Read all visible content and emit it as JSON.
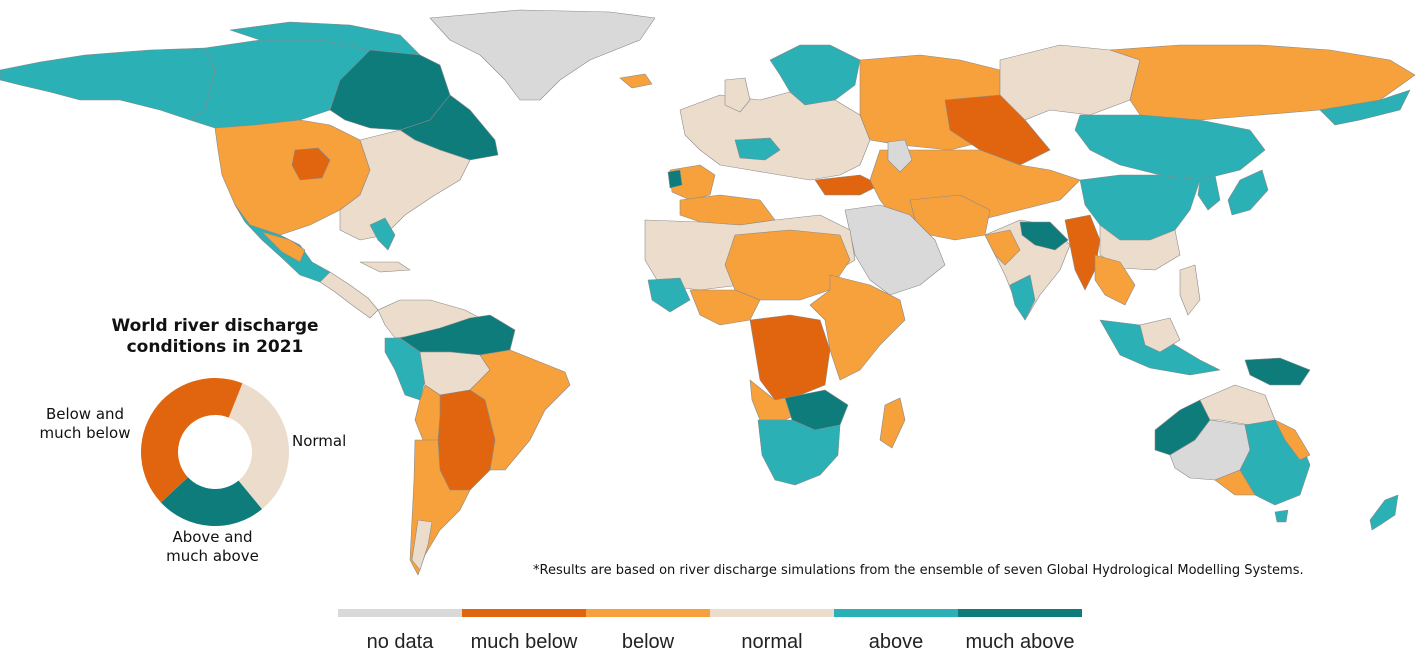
{
  "title_lines": [
    "World river discharge",
    "conditions in 2021"
  ],
  "donut": {
    "segments": [
      {
        "key": "normal",
        "label_lines": [
          "Normal"
        ],
        "fraction": 0.33,
        "color": "#ebdccb"
      },
      {
        "key": "above",
        "label_lines": [
          "Above and",
          "much above"
        ],
        "fraction": 0.24,
        "color": "#0f7c7c"
      },
      {
        "key": "below",
        "label_lines": [
          "Below and",
          "much below"
        ],
        "fraction": 0.43,
        "color": "#e0650e"
      }
    ]
  },
  "footnote": "*Results are based on river discharge simulations from the ensemble of seven Global Hydrological Modelling Systems.",
  "legend": [
    {
      "label": "no data",
      "color": "#d9d9d9"
    },
    {
      "label": "much below",
      "color": "#e0650e"
    },
    {
      "label": "below",
      "color": "#f6a13c"
    },
    {
      "label": "normal",
      "color": "#ebdccb"
    },
    {
      "label": "above",
      "color": "#2ab0b5"
    },
    {
      "label": "much above",
      "color": "#0f7c7c"
    }
  ],
  "map": {
    "regions": [
      {
        "name": "alaska-yukon",
        "class": "above"
      },
      {
        "name": "north-canada",
        "class": "above"
      },
      {
        "name": "hudson-region",
        "class": "much above"
      },
      {
        "name": "eastern-canada",
        "class": "much above"
      },
      {
        "name": "western-usa",
        "class": "below"
      },
      {
        "name": "northern-plains",
        "class": "much below"
      },
      {
        "name": "eastern-usa",
        "class": "normal"
      },
      {
        "name": "mexico",
        "class": "above"
      },
      {
        "name": "central-america",
        "class": "normal"
      },
      {
        "name": "greenland",
        "class": "no data"
      },
      {
        "name": "amazon-north",
        "class": "much above"
      },
      {
        "name": "andes-west",
        "class": "above"
      },
      {
        "name": "brazil-east",
        "class": "below"
      },
      {
        "name": "parana-basin",
        "class": "much below"
      },
      {
        "name": "southern-cone",
        "class": "below"
      },
      {
        "name": "europe",
        "class": "normal"
      },
      {
        "name": "scandinavia",
        "class": "above"
      },
      {
        "name": "russia-west",
        "class": "below"
      },
      {
        "name": "west-siberia",
        "class": "much below"
      },
      {
        "name": "east-siberia",
        "class": "below"
      },
      {
        "name": "mongolia-north-china",
        "class": "above"
      },
      {
        "name": "china-east",
        "class": "above"
      },
      {
        "name": "central-asia",
        "class": "below"
      },
      {
        "name": "arabia",
        "class": "no data"
      },
      {
        "name": "sahara",
        "class": "normal"
      },
      {
        "name": "sahel-north-africa",
        "class": "below"
      },
      {
        "name": "congo-basin",
        "class": "much below"
      },
      {
        "name": "east-africa",
        "class": "below"
      },
      {
        "name": "southern-africa",
        "class": "above"
      },
      {
        "name": "zambezi",
        "class": "much above"
      },
      {
        "name": "madagascar",
        "class": "below"
      },
      {
        "name": "india",
        "class": "normal"
      },
      {
        "name": "ganges",
        "class": "much above"
      },
      {
        "name": "southeast-asia",
        "class": "much below"
      },
      {
        "name": "indonesia",
        "class": "above"
      },
      {
        "name": "new-guinea",
        "class": "much above"
      },
      {
        "name": "australia-interior",
        "class": "no data"
      },
      {
        "name": "australia-east",
        "class": "above"
      },
      {
        "name": "australia-northwest",
        "class": "much above"
      },
      {
        "name": "new-zealand",
        "class": "above"
      }
    ]
  }
}
